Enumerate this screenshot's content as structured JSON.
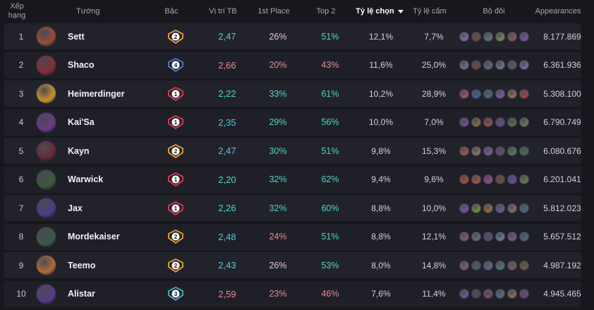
{
  "headers": {
    "rank_line1": "Xếp",
    "rank_line2": "hạng",
    "champion": "Tướng",
    "tier": "Bậc",
    "avg_place": "Vị trí TB",
    "first_place": "1st Place",
    "top2": "Top 2",
    "pick_rate": "Tỷ lệ chọn",
    "ban_rate": "Tỷ lệ cấm",
    "duo": "Bộ đôi",
    "appearances": "Appearances"
  },
  "colors": {
    "tier1": "#e23b52",
    "tier2": "#f0a132",
    "tier3": "#3bb9c6",
    "tier4": "#4d7ed8",
    "good": "#4fd6c5",
    "avg_normal": "#58c8d8",
    "bad": "#e78a95",
    "neutral": "#e3c7cf"
  },
  "rows": [
    {
      "rank": "1",
      "champion": "Sett",
      "tier": "2",
      "avg": "2,47",
      "first": "26%",
      "top2": "51%",
      "pick": "12,1%",
      "ban": "7,7%",
      "appearances": "8.177.869",
      "avatar_color": "#9b4a3a",
      "duo_colors": [
        "#7a6ea8",
        "#6d4a3a",
        "#5a7a7a",
        "#7a8a5a",
        "#8a5a5a",
        "#6a5aa0"
      ]
    },
    {
      "rank": "2",
      "champion": "Shaco",
      "tier": "4",
      "avg": "2,66",
      "first": "20%",
      "top2": "43%",
      "pick": "11,6%",
      "ban": "25,0%",
      "appearances": "6.361.936",
      "avatar_color": "#8a2a3a",
      "duo_colors": [
        "#7a6a9a",
        "#6a4a3a",
        "#5a6a8a",
        "#6a7a8a",
        "#5a5a6a",
        "#7a6a9a"
      ]
    },
    {
      "rank": "3",
      "champion": "Heimerdinger",
      "tier": "1",
      "avg": "2,22",
      "first": "33%",
      "top2": "61%",
      "pick": "10,2%",
      "ban": "28,9%",
      "appearances": "5.308.100",
      "avatar_color": "#c8902a",
      "duo_colors": [
        "#b04a6a",
        "#4a5aa0",
        "#3a6a7a",
        "#7a5aa0",
        "#a06a4a",
        "#b03a4a"
      ]
    },
    {
      "rank": "4",
      "champion": "Kai'Sa",
      "tier": "1",
      "avg": "2,35",
      "first": "29%",
      "top2": "56%",
      "pick": "10,0%",
      "ban": "7,0%",
      "appearances": "6.790.749",
      "avatar_color": "#6a3a8a",
      "duo_colors": [
        "#7a4a9a",
        "#8a6a4a",
        "#9a4a4a",
        "#6a4a8a",
        "#5a6a4a",
        "#6a7a5a"
      ]
    },
    {
      "rank": "5",
      "champion": "Kayn",
      "tier": "2",
      "avg": "2,47",
      "first": "30%",
      "top2": "51%",
      "pick": "9,8%",
      "ban": "15,3%",
      "appearances": "6.080.676",
      "avatar_color": "#6a2a3a",
      "duo_colors": [
        "#9a5a4a",
        "#8a7a5a",
        "#7a5a9a",
        "#6a4a7a",
        "#5a7a5a",
        "#4a6a5a"
      ]
    },
    {
      "rank": "6",
      "champion": "Warwick",
      "tier": "1",
      "avg": "2,20",
      "first": "32%",
      "top2": "62%",
      "pick": "9,4%",
      "ban": "9,6%",
      "appearances": "6.201.041",
      "avatar_color": "#3a5a3a",
      "duo_colors": [
        "#b04a3a",
        "#a05a3a",
        "#9a4a8a",
        "#7a4a3a",
        "#6a4a9a",
        "#6a7a4a"
      ]
    },
    {
      "rank": "7",
      "champion": "Jax",
      "tier": "1",
      "avg": "2,26",
      "first": "32%",
      "top2": "60%",
      "pick": "8,8%",
      "ban": "10,0%",
      "appearances": "5.812.023",
      "avatar_color": "#4a3a8a",
      "duo_colors": [
        "#7a4ab0",
        "#7a8a3a",
        "#9a6a3a",
        "#6a5a9a",
        "#8a6a5a",
        "#4a6a7a"
      ]
    },
    {
      "rank": "8",
      "champion": "Mordekaiser",
      "tier": "2",
      "avg": "2,48",
      "first": "24%",
      "top2": "51%",
      "pick": "8,8%",
      "ban": "12,1%",
      "appearances": "5.657.512",
      "avatar_color": "#3a5a4a",
      "duo_colors": [
        "#8a5a6a",
        "#6a6a7a",
        "#5a4a7a",
        "#6a7a9a",
        "#7a5a8a",
        "#4a6a8a"
      ]
    },
    {
      "rank": "9",
      "champion": "Teemo",
      "tier": "2",
      "avg": "2,43",
      "first": "26%",
      "top2": "53%",
      "pick": "8,0%",
      "ban": "14,8%",
      "appearances": "4.987.192",
      "avatar_color": "#b06a3a",
      "duo_colors": [
        "#8a5a7a",
        "#4a5a6a",
        "#5a6a8a",
        "#4a7a7a",
        "#7a5a5a",
        "#6a5a3a"
      ]
    },
    {
      "rank": "10",
      "champion": "Alistar",
      "tier": "3",
      "avg": "2,59",
      "first": "23%",
      "top2": "46%",
      "pick": "7,6%",
      "ban": "11,4%",
      "appearances": "4.945.465",
      "avatar_color": "#5a3a8a",
      "duo_colors": [
        "#6a5a9a",
        "#4a4a5a",
        "#7a4a6a",
        "#5a6a8a",
        "#8a6a5a",
        "#6a4a7a"
      ]
    }
  ]
}
